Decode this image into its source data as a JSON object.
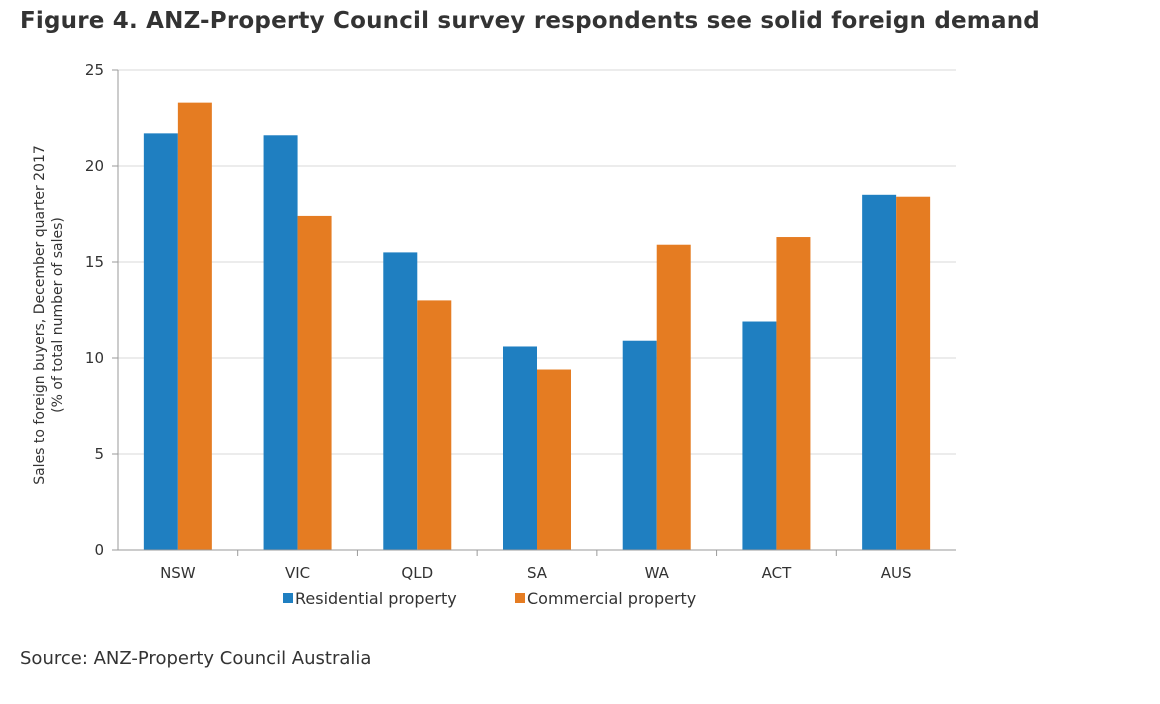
{
  "title": "Figure 4. ANZ-Property Council survey respondents see solid foreign demand",
  "source": "Source: ANZ-Property Council Australia",
  "chart_data": {
    "type": "bar",
    "categories": [
      "NSW",
      "VIC",
      "QLD",
      "SA",
      "WA",
      "ACT",
      "AUS"
    ],
    "series": [
      {
        "name": "Residential property",
        "color": "#1f7fc1",
        "values": [
          21.7,
          21.6,
          15.5,
          10.6,
          10.9,
          11.9,
          18.5
        ]
      },
      {
        "name": "Commercial property",
        "color": "#e57c22",
        "values": [
          23.3,
          17.4,
          13.0,
          9.4,
          15.9,
          16.3,
          18.4
        ]
      }
    ],
    "ylabel": [
      "Sales to foreign buyers, December quarter 2017",
      "(% of total number of sales)"
    ],
    "xlabel": "",
    "ylim": [
      0,
      25
    ],
    "yticks": [
      0,
      5,
      10,
      15,
      20,
      25
    ],
    "grid": true,
    "legend": "bottom"
  }
}
